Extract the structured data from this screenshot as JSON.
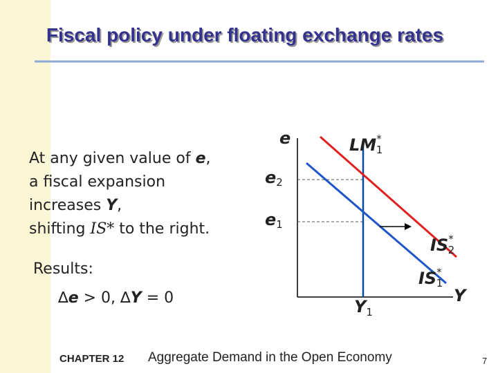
{
  "header": {
    "title": "Fiscal policy under floating exchange rates"
  },
  "body": {
    "lines": [
      [
        "At any given value of ",
        "e",
        ","
      ],
      [
        "a fiscal expansion"
      ],
      [
        "increases ",
        "Y",
        ","
      ],
      [
        "shifting ",
        "IS*",
        " to the right."
      ]
    ],
    "results_label": "Results:",
    "results": [
      "∆",
      "e",
      " > 0,  ∆",
      "Y",
      " = 0"
    ]
  },
  "diagram": {
    "y_axis": "e",
    "x_axis": "Y",
    "lm": {
      "base": "LM",
      "sup": "*",
      "sub": "1"
    },
    "e2": {
      "base": "e",
      "sub": "2"
    },
    "e1": {
      "base": "e",
      "sub": "1"
    },
    "is2": {
      "base": "IS",
      "sup": "*",
      "sub": "2"
    },
    "is1": {
      "base": "IS",
      "sup": "*",
      "sub": "1"
    },
    "y1": {
      "base": "Y",
      "sub": "1"
    }
  },
  "footer": {
    "chapter": "CHAPTER 12",
    "subject": "Aggregate Demand in the Open Economy",
    "page": "7"
  }
}
